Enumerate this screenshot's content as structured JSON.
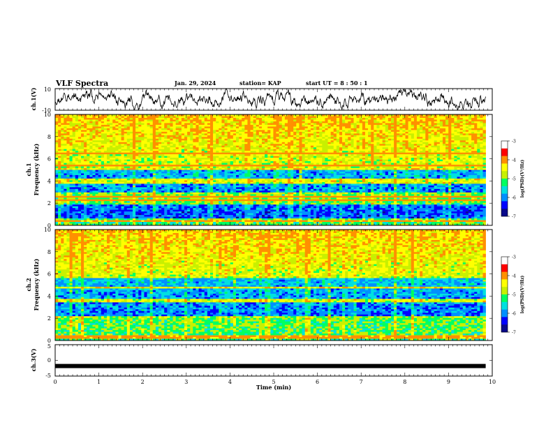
{
  "header": {
    "title": "VLF Spectra",
    "date": "Jan. 29, 2024",
    "station": "station= KAP",
    "start": "start  UT  =   8  : 50 : 1"
  },
  "chart_data": [
    {
      "type": "line",
      "name": "ch1-waveform",
      "ylabel": "ch.1(V)",
      "ylim": [
        -10,
        10
      ],
      "y_ticks": [
        10,
        -10
      ],
      "x_range_min": [
        0,
        9.85
      ],
      "trace_mean": 0,
      "trace_amplitude_approx": 5
    },
    {
      "type": "heatmap",
      "name": "ch1-spectrogram",
      "ylabel_line1": "ch.1",
      "ylabel_line2": "Frequency  (kHz)",
      "ylim": [
        0,
        10
      ],
      "y_ticks": [
        0,
        2,
        4,
        6,
        8,
        10
      ],
      "x_range_min": [
        0,
        9.85
      ],
      "colorbar_label": "log(PSD)(V²/Hz)",
      "colorbar_range": [
        -7,
        -3
      ],
      "colorbar_ticks": [
        "-3",
        "-4",
        "-5",
        "-6",
        "-7"
      ],
      "quiet_bands_khz": [
        [
          3.0,
          5.2
        ],
        [
          0.6,
          1.9
        ]
      ],
      "persistent_lines_khz": [
        6.5,
        5.4,
        5.1,
        4.1,
        3.8,
        2.6,
        2.3,
        0.4
      ]
    },
    {
      "type": "heatmap",
      "name": "ch2-spectrogram",
      "ylabel_line1": "ch.2",
      "ylabel_line2": "Frequency  (kHz)",
      "ylim": [
        0,
        10
      ],
      "y_ticks": [
        0,
        2,
        4,
        6,
        8,
        10
      ],
      "x_range_min": [
        0,
        9.85
      ],
      "colorbar_label": "log(PSD)(V²/Hz)",
      "colorbar_range": [
        -7,
        -3
      ],
      "colorbar_ticks": [
        "-3",
        "-4",
        "-5",
        "-6",
        "-7"
      ],
      "quiet_bands_khz": [
        [
          2.0,
          5.6
        ]
      ],
      "persistent_lines_khz": [
        4.8,
        3.6,
        2.1,
        0.3
      ]
    },
    {
      "type": "line",
      "name": "ch3-waveform",
      "ylabel": "ch.3(V)",
      "ylim": [
        -5,
        5
      ],
      "y_ticks": [
        5,
        0,
        -5
      ],
      "x_range_min": [
        0,
        9.85
      ],
      "trace_level": -1.8,
      "xlabel": "Time  (min)",
      "xlim": [
        0,
        10
      ],
      "x_ticks": [
        0,
        1,
        2,
        3,
        4,
        5,
        6,
        7,
        8,
        9,
        10
      ]
    }
  ],
  "colorscale": [
    "#08088a",
    "#0000ff",
    "#0090ff",
    "#00e0e0",
    "#00ff60",
    "#c8f000",
    "#ffff00",
    "#ff9000",
    "#ff0000",
    "#ffffff"
  ]
}
